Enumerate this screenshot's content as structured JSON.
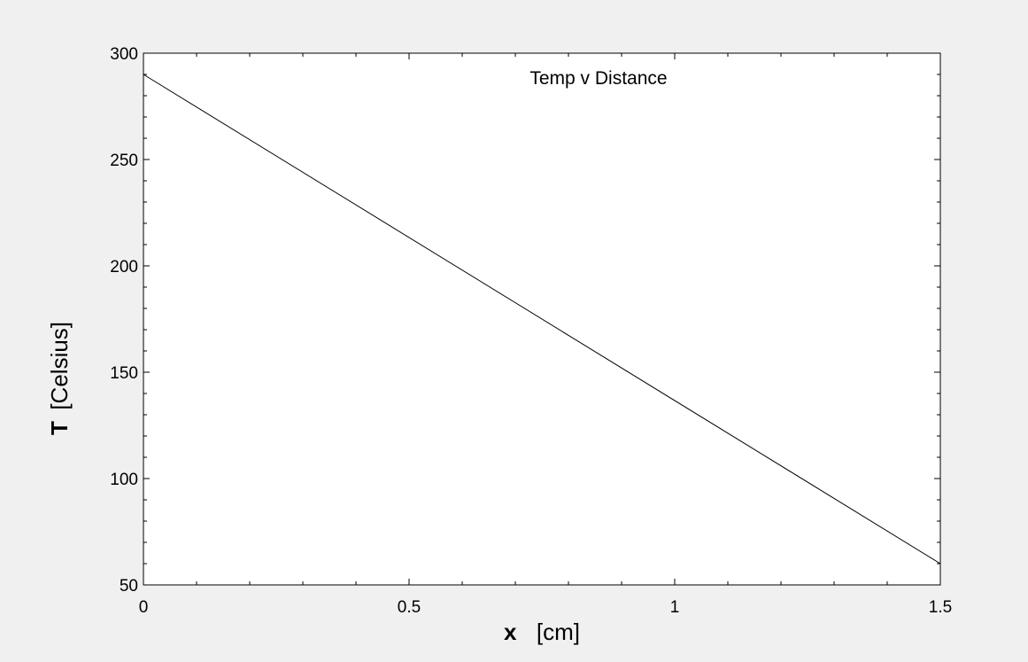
{
  "chart_data": {
    "type": "line",
    "title": "Temp v Distance",
    "xlabel": {
      "symbol": "x",
      "unit": "[cm]"
    },
    "ylabel": {
      "symbol": "T",
      "unit": "[Celsius]"
    },
    "xlim": [
      0,
      1.5
    ],
    "ylim": [
      50,
      300
    ],
    "x_ticks": [
      0,
      0.5,
      1,
      1.5
    ],
    "x_tick_labels": [
      "0",
      "0.5",
      "1",
      "1.5"
    ],
    "y_ticks": [
      50,
      100,
      150,
      200,
      250,
      300
    ],
    "y_tick_labels": [
      "50",
      "100",
      "150",
      "200",
      "250",
      "300"
    ],
    "x_minor_step": 0.1,
    "y_minor_step": 10,
    "grid": false,
    "series": [
      {
        "color": "#000000",
        "x": [
          0,
          1.5
        ],
        "y": [
          290,
          60
        ]
      }
    ]
  },
  "colors": {
    "background": "#f0f0f0",
    "plot_area": "#ffffff",
    "axes": "#000000"
  }
}
